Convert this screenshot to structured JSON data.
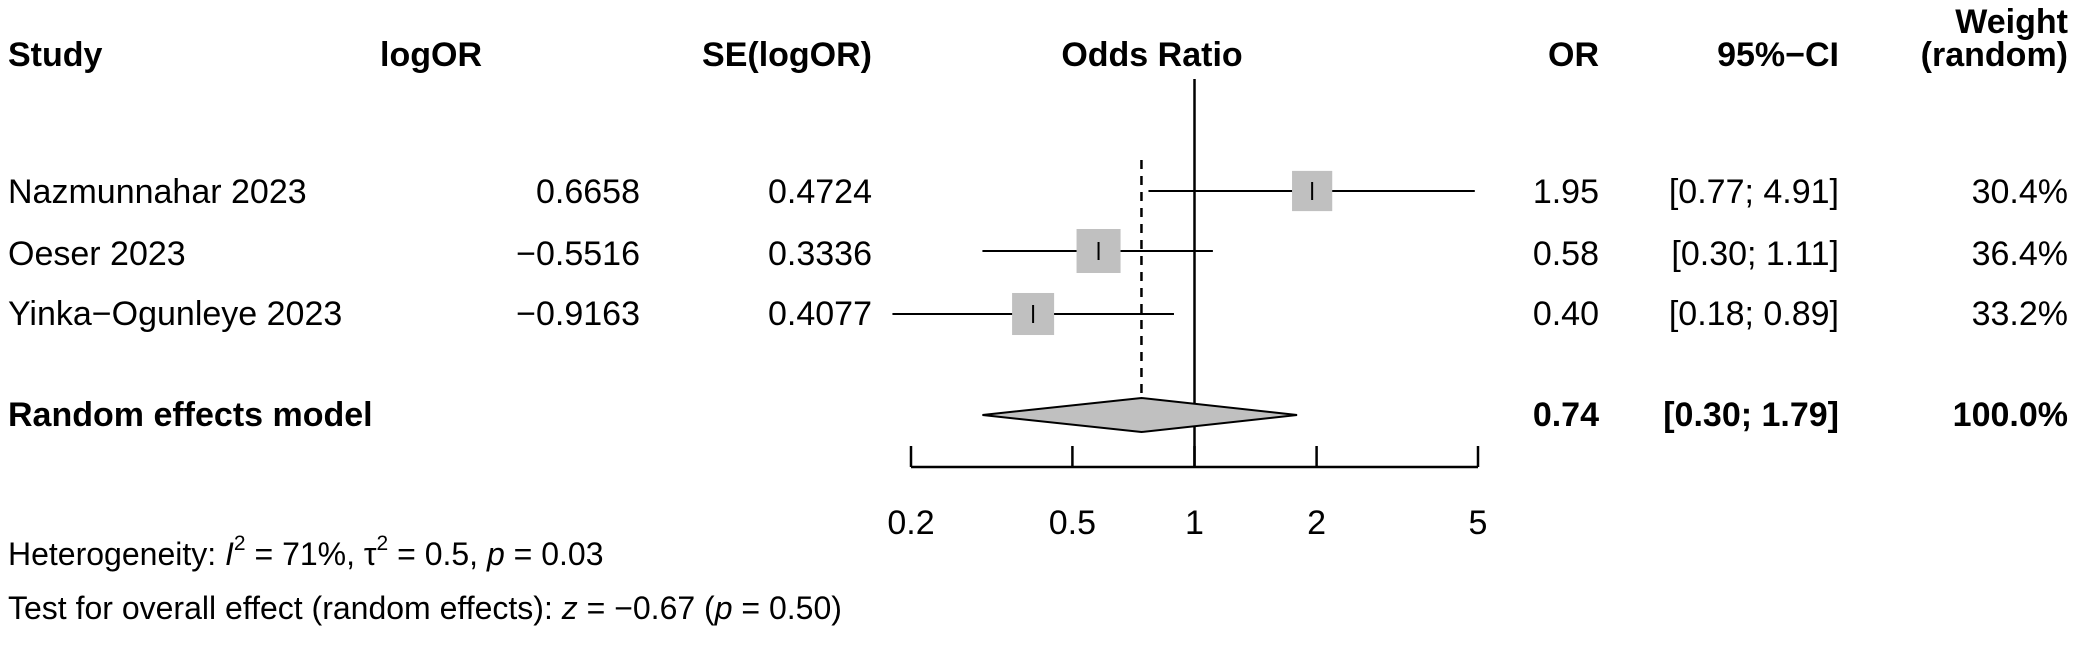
{
  "headers": {
    "study": "Study",
    "logor": "logOR",
    "se": "SE(logOR)",
    "odds_ratio": "Odds Ratio",
    "or": "OR",
    "ci": "95%−CI",
    "weight_line1": "Weight",
    "weight_line2": "(random)"
  },
  "studies": [
    {
      "name": "Nazmunnahar 2023",
      "logor": "0.6658",
      "se": "0.4724",
      "or": "1.95",
      "ci": "[0.77; 4.91]",
      "weight": "30.4%"
    },
    {
      "name": "Oeser 2023",
      "logor": "−0.5516",
      "se": "0.3336",
      "or": "0.58",
      "ci": "[0.30; 1.11]",
      "weight": "36.4%"
    },
    {
      "name": "Yinka−Ogunleye 2023",
      "logor": "−0.9163",
      "se": "0.4077",
      "or": "0.40",
      "ci": "[0.18; 0.89]",
      "weight": "33.2%"
    }
  ],
  "model": {
    "label": "Random effects model",
    "or": "0.74",
    "ci": "[0.30; 1.79]",
    "weight": "100.0%"
  },
  "footer": {
    "het_label": "Heterogeneity:",
    "i2_symbol": "I",
    "i2_value": "71%",
    "tau2_symbol": "τ",
    "tau2_value": "0.5",
    "p_symbol": "p",
    "het_p": "0.03",
    "test_label": "Test for overall effect (random effects):",
    "z_symbol": "z",
    "z_value": "−0.67",
    "test_p": "0.50"
  },
  "chart_data": {
    "type": "forest",
    "title": "Odds Ratio",
    "xscale": "log",
    "xlim": [
      0.2,
      5
    ],
    "ticks": [
      0.2,
      0.5,
      1,
      2,
      5
    ],
    "tick_labels": [
      "0.2",
      "0.5",
      "1",
      "2",
      "5"
    ],
    "reference_line": 1,
    "pooled_line": 0.74,
    "studies": [
      {
        "name": "Nazmunnahar 2023",
        "or": 1.95,
        "lower": 0.77,
        "upper": 4.91,
        "weight": 30.4
      },
      {
        "name": "Oeser 2023",
        "or": 0.58,
        "lower": 0.3,
        "upper": 1.11,
        "weight": 36.4
      },
      {
        "name": "Yinka−Ogunleye 2023",
        "or": 0.4,
        "lower": 0.18,
        "upper": 0.89,
        "weight": 33.2
      }
    ],
    "pooled": {
      "name": "Random effects model",
      "or": 0.74,
      "lower": 0.3,
      "upper": 1.79,
      "weight": 100.0
    },
    "colors": {
      "box": "#c0c0c0",
      "diamond": "#c0c0c0",
      "line": "#000000"
    }
  }
}
